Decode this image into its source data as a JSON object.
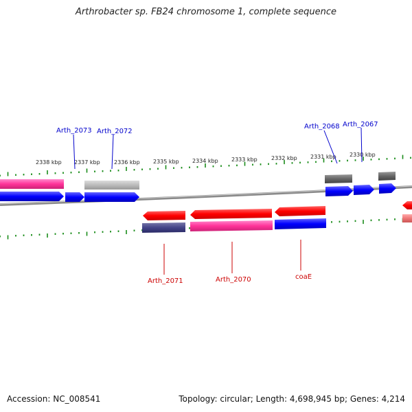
{
  "title": "Arthrobacter sp. FB24 chromosome 1, complete sequence",
  "footer": {
    "accession": "Accession: NC_008541",
    "stats": "Topology: circular; Length: 4,698,945 bp; Genes: 4,214"
  },
  "colors": {
    "backbone": "#888888",
    "tick": "#1a8c1a",
    "label_forward": "#0000cc",
    "label_reverse": "#cc0000",
    "red": "#ff0000",
    "blue": "#0000ff",
    "pink": "#ff3399",
    "gray": "#bbbbbb",
    "darkgray": "#666666",
    "navy": "#444488",
    "salmon": "#ee7777"
  },
  "tick_labels": [
    "2338 kbp",
    "2337 kbp",
    "2336 kbp",
    "2335 kbp",
    "2334 kbp",
    "2333 kbp",
    "2332 kbp",
    "2331 kbp",
    "2330 kbp"
  ],
  "gene_labels": {
    "arth_2073": "Arth_2073",
    "arth_2072": "Arth_2072",
    "arth_2068": "Arth_2068",
    "arth_2067": "Arth_2067",
    "arth_2071": "Arth_2071",
    "arth_2070": "Arth_2070",
    "coae": "coaE"
  }
}
